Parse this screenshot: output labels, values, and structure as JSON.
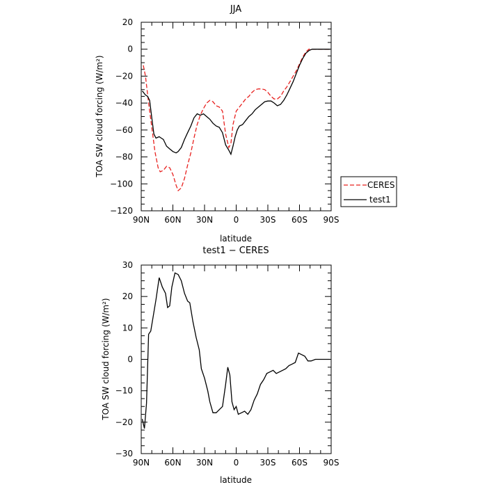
{
  "chart_data": [
    {
      "type": "line",
      "title": "JJA",
      "xlabel": "latitude",
      "ylabel": "TOA SW cloud forcing (W/m²)",
      "x_ticks": [
        90,
        60,
        30,
        0,
        -30,
        -60,
        -90
      ],
      "x_tick_labels": [
        "90N",
        "60N",
        "30N",
        "0",
        "30S",
        "60S",
        "90S"
      ],
      "xlim": [
        90,
        -90
      ],
      "ylim": [
        -120,
        20
      ],
      "y_ticks": [
        -120,
        -100,
        -80,
        -60,
        -40,
        -20,
        0,
        20
      ],
      "y_tick_labels": [
        "−120",
        "−100",
        "−80",
        "−60",
        "−40",
        "−20",
        "0",
        "20"
      ],
      "grid": false,
      "legend_position": "right",
      "series": [
        {
          "name": "CERES",
          "color": "#e8211f",
          "style": "dashed",
          "points": [
            [
              88,
              -12
            ],
            [
              86,
              -20
            ],
            [
              83,
              -40
            ],
            [
              80,
              -58
            ],
            [
              77,
              -76
            ],
            [
              74,
              -88
            ],
            [
              72,
              -91
            ],
            [
              69,
              -90
            ],
            [
              66,
              -87
            ],
            [
              63,
              -88
            ],
            [
              60,
              -93
            ],
            [
              57,
              -101
            ],
            [
              55,
              -105
            ],
            [
              52,
              -103
            ],
            [
              49,
              -96
            ],
            [
              46,
              -86
            ],
            [
              43,
              -77
            ],
            [
              40,
              -66
            ],
            [
              37,
              -56
            ],
            [
              34,
              -49
            ],
            [
              31,
              -44
            ],
            [
              28,
              -40
            ],
            [
              25,
              -38
            ],
            [
              22,
              -39
            ],
            [
              19,
              -42
            ],
            [
              16,
              -43
            ],
            [
              13,
              -46
            ],
            [
              10,
              -63
            ],
            [
              7,
              -73
            ],
            [
              5,
              -70
            ],
            [
              3,
              -56
            ],
            [
              0,
              -46
            ],
            [
              -3,
              -43
            ],
            [
              -6,
              -40
            ],
            [
              -9,
              -37
            ],
            [
              -12,
              -35
            ],
            [
              -15,
              -32
            ],
            [
              -18,
              -30
            ],
            [
              -21,
              -29.5
            ],
            [
              -24,
              -29.5
            ],
            [
              -27,
              -30
            ],
            [
              -30,
              -32
            ],
            [
              -33,
              -35
            ],
            [
              -36,
              -37
            ],
            [
              -39,
              -37
            ],
            [
              -42,
              -35
            ],
            [
              -45,
              -31
            ],
            [
              -48,
              -28
            ],
            [
              -51,
              -24
            ],
            [
              -54,
              -20
            ],
            [
              -57,
              -16
            ],
            [
              -60,
              -11
            ],
            [
              -63,
              -6
            ],
            [
              -66,
              -2
            ],
            [
              -69,
              0
            ],
            [
              -72,
              0
            ],
            [
              -78,
              0
            ],
            [
              -84,
              0
            ],
            [
              -89,
              0
            ]
          ]
        },
        {
          "name": "test1",
          "color": "#000000",
          "style": "solid",
          "points": [
            [
              89,
              -31
            ],
            [
              86,
              -34
            ],
            [
              84,
              -35
            ],
            [
              82,
              -38
            ],
            [
              80,
              -51
            ],
            [
              78,
              -63
            ],
            [
              76,
              -66
            ],
            [
              73,
              -65
            ],
            [
              71,
              -66
            ],
            [
              69,
              -67
            ],
            [
              66,
              -72
            ],
            [
              63,
              -74
            ],
            [
              60,
              -76
            ],
            [
              57,
              -77
            ],
            [
              55,
              -76
            ],
            [
              52,
              -73
            ],
            [
              49,
              -67
            ],
            [
              46,
              -62
            ],
            [
              43,
              -57
            ],
            [
              40,
              -51
            ],
            [
              37,
              -48
            ],
            [
              34,
              -49
            ],
            [
              31,
              -48
            ],
            [
              28,
              -50
            ],
            [
              25,
              -52
            ],
            [
              22,
              -55
            ],
            [
              19,
              -57
            ],
            [
              16,
              -58
            ],
            [
              13,
              -62
            ],
            [
              10,
              -71
            ],
            [
              7,
              -75
            ],
            [
              5,
              -78
            ],
            [
              3,
              -72
            ],
            [
              1,
              -65
            ],
            [
              -1,
              -60
            ],
            [
              -3,
              -57
            ],
            [
              -6,
              -56
            ],
            [
              -9,
              -53
            ],
            [
              -12,
              -50
            ],
            [
              -15,
              -48
            ],
            [
              -18,
              -45
            ],
            [
              -21,
              -43
            ],
            [
              -24,
              -41
            ],
            [
              -27,
              -39
            ],
            [
              -30,
              -38.5
            ],
            [
              -33,
              -38.5
            ],
            [
              -36,
              -40
            ],
            [
              -39,
              -42
            ],
            [
              -42,
              -41
            ],
            [
              -45,
              -38
            ],
            [
              -48,
              -34
            ],
            [
              -51,
              -29
            ],
            [
              -54,
              -24
            ],
            [
              -57,
              -18
            ],
            [
              -60,
              -12
            ],
            [
              -63,
              -7
            ],
            [
              -66,
              -3
            ],
            [
              -69,
              -1
            ],
            [
              -72,
              0
            ],
            [
              -78,
              0
            ],
            [
              -84,
              0
            ],
            [
              -89,
              0
            ]
          ]
        }
      ]
    },
    {
      "type": "line",
      "title": "test1 − CERES",
      "xlabel": "latitude",
      "ylabel": "TOA SW cloud forcing (W/m²)",
      "x_ticks": [
        90,
        60,
        30,
        0,
        -30,
        -60,
        -90
      ],
      "x_tick_labels": [
        "90N",
        "60N",
        "30N",
        "0",
        "30S",
        "60S",
        "90S"
      ],
      "xlim": [
        90,
        -90
      ],
      "ylim": [
        -30,
        30
      ],
      "y_ticks": [
        -30,
        -20,
        -10,
        0,
        10,
        20,
        30
      ],
      "y_tick_labels": [
        "−30",
        "−20",
        "−10",
        "0",
        "10",
        "20",
        "30"
      ],
      "grid": false,
      "series": [
        {
          "color": "#000000",
          "style": "solid",
          "points": [
            [
              89,
              -19
            ],
            [
              87,
              -22
            ],
            [
              85,
              -14
            ],
            [
              83,
              8
            ],
            [
              81,
              9
            ],
            [
              79,
              13
            ],
            [
              76,
              19
            ],
            [
              73,
              26
            ],
            [
              70,
              23
            ],
            [
              67,
              21
            ],
            [
              65,
              16.5
            ],
            [
              63,
              17
            ],
            [
              61,
              23
            ],
            [
              58,
              27.5
            ],
            [
              55,
              27
            ],
            [
              52,
              25
            ],
            [
              49,
              21
            ],
            [
              46,
              18.5
            ],
            [
              44,
              18
            ],
            [
              41,
              12
            ],
            [
              38,
              7
            ],
            [
              35,
              3
            ],
            [
              33,
              -3
            ],
            [
              30,
              -6
            ],
            [
              27,
              -10
            ],
            [
              25,
              -13.5
            ],
            [
              22,
              -17
            ],
            [
              19,
              -17
            ],
            [
              16,
              -16
            ],
            [
              13,
              -15
            ],
            [
              10,
              -8
            ],
            [
              8,
              -2.5
            ],
            [
              6,
              -5
            ],
            [
              4,
              -13.5
            ],
            [
              2,
              -16
            ],
            [
              0,
              -15
            ],
            [
              -2,
              -17.5
            ],
            [
              -5,
              -17
            ],
            [
              -8,
              -16.5
            ],
            [
              -11,
              -17.5
            ],
            [
              -14,
              -16
            ],
            [
              -17,
              -13
            ],
            [
              -20,
              -11
            ],
            [
              -23,
              -8
            ],
            [
              -26,
              -6.5
            ],
            [
              -29,
              -4.5
            ],
            [
              -32,
              -4
            ],
            [
              -35,
              -3.5
            ],
            [
              -38,
              -4.5
            ],
            [
              -41,
              -4
            ],
            [
              -44,
              -3.5
            ],
            [
              -47,
              -3
            ],
            [
              -50,
              -2
            ],
            [
              -53,
              -1.5
            ],
            [
              -56,
              -1
            ],
            [
              -59,
              2
            ],
            [
              -62,
              1.5
            ],
            [
              -65,
              1
            ],
            [
              -68,
              -0.5
            ],
            [
              -71,
              -0.5
            ],
            [
              -75,
              0
            ],
            [
              -80,
              0
            ],
            [
              -85,
              0
            ],
            [
              -89,
              0
            ]
          ]
        }
      ]
    }
  ]
}
